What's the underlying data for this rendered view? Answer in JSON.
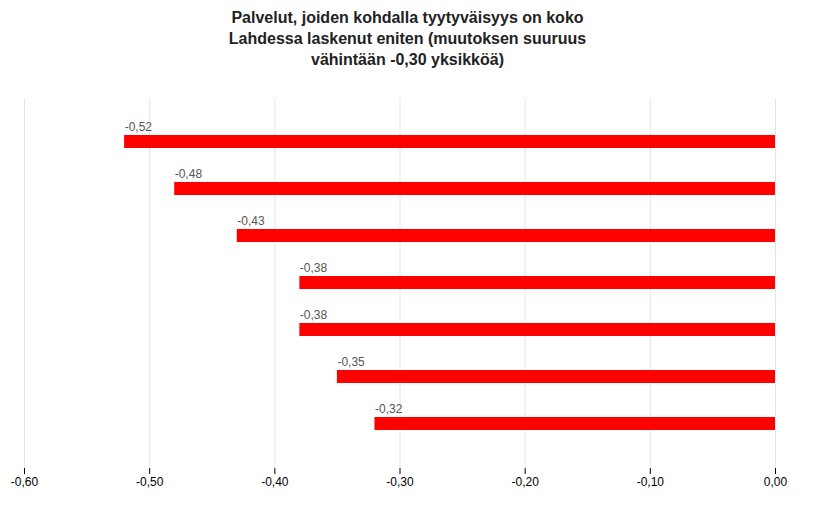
{
  "chart_data": {
    "type": "bar",
    "orientation": "horizontal",
    "title": "Palvelut, joiden kohdalla tyytyväisyys on koko\nLahdessa laskenut eniten (muutoksen suuruus\nvähintään -0,30 yksikköä)",
    "categories": [
      null,
      null,
      null,
      null,
      null,
      null,
      null
    ],
    "values": [
      -0.52,
      -0.48,
      -0.43,
      -0.38,
      -0.38,
      -0.35,
      -0.32
    ],
    "value_labels": [
      "-0,52",
      "-0,48",
      "-0,43",
      "-0,38",
      "-0,38",
      "-0,35",
      "-0,32"
    ],
    "data_labels": true,
    "color": "#ff0000",
    "xlim": [
      -0.6,
      0.0
    ],
    "xticks": [
      {
        "value": -0.6,
        "label": "-0,60"
      },
      {
        "value": -0.5,
        "label": "-0,50"
      },
      {
        "value": -0.4,
        "label": "-0,40"
      },
      {
        "value": -0.3,
        "label": "-0,30"
      },
      {
        "value": -0.2,
        "label": "-0,20"
      },
      {
        "value": -0.1,
        "label": "-0,10"
      },
      {
        "value": 0.0,
        "label": "0,00"
      }
    ],
    "grid": true,
    "tick_labels": "x"
  }
}
